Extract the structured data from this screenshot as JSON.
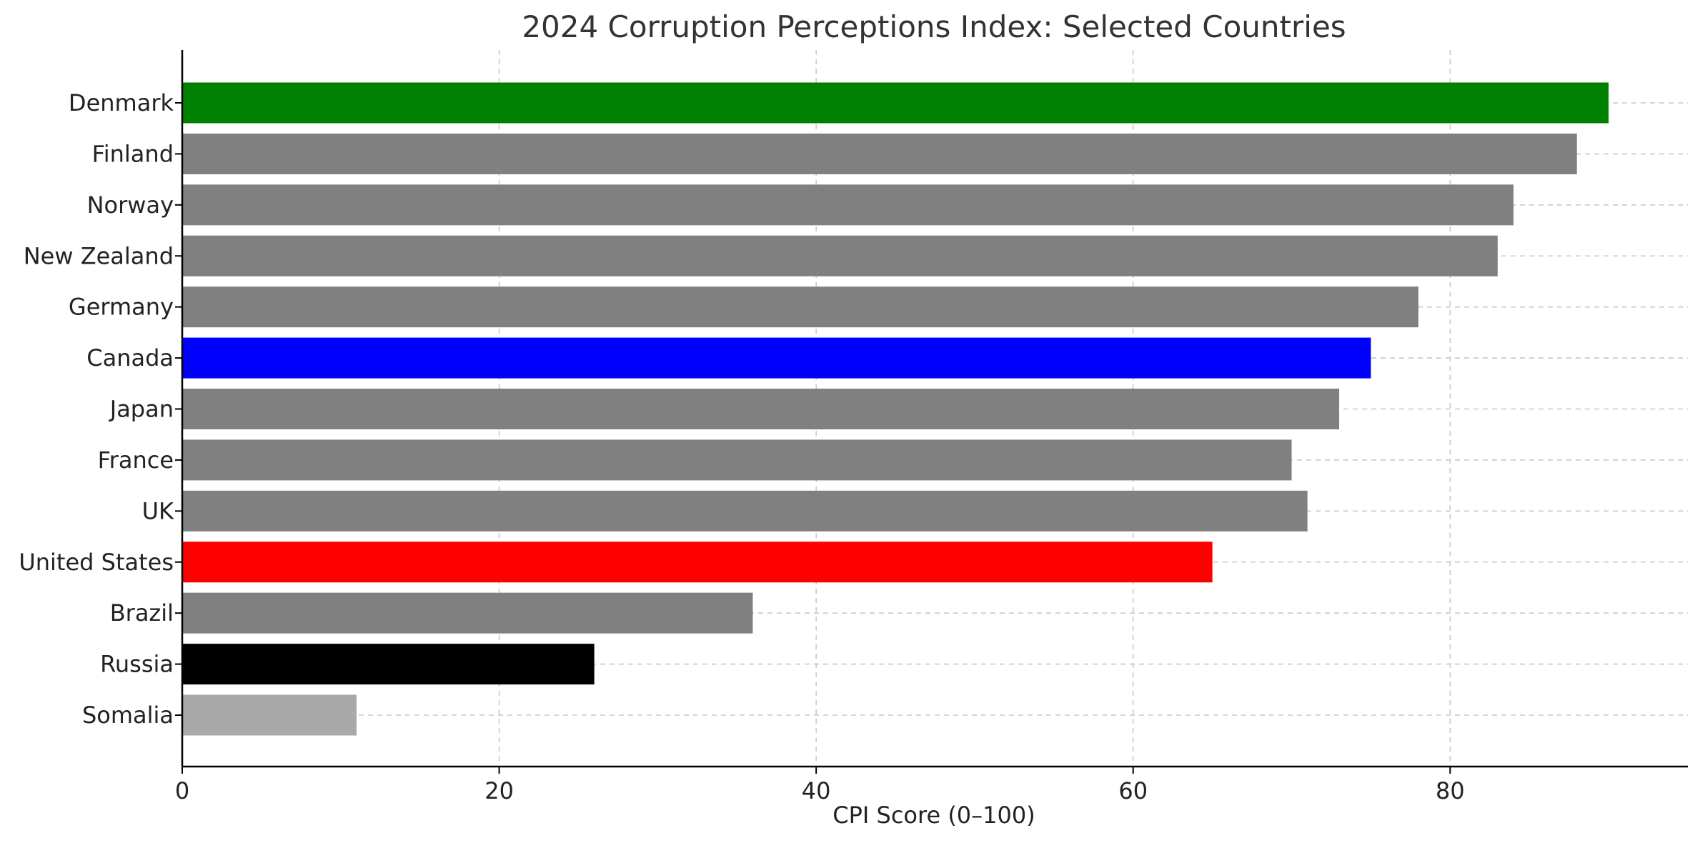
{
  "chart_data": {
    "type": "bar",
    "orientation": "horizontal",
    "title": "2024 Corruption Perceptions Index: Selected Countries",
    "xlabel": "CPI Score (0–100)",
    "ylabel": "",
    "xlim": [
      0,
      95
    ],
    "xticks": [
      0,
      20,
      40,
      60,
      80
    ],
    "grid": true,
    "categories": [
      "Denmark",
      "Finland",
      "Norway",
      "New Zealand",
      "Germany",
      "Canada",
      "Japan",
      "France",
      "UK",
      "United States",
      "Brazil",
      "Russia",
      "Somalia"
    ],
    "values": [
      90,
      88,
      84,
      83,
      78,
      75,
      73,
      70,
      71,
      65,
      36,
      26,
      11
    ],
    "colors": [
      "#008000",
      "#808080",
      "#808080",
      "#808080",
      "#808080",
      "#0000ff",
      "#808080",
      "#808080",
      "#808080",
      "#ff0000",
      "#808080",
      "#000000",
      "#a9a9a9"
    ]
  }
}
